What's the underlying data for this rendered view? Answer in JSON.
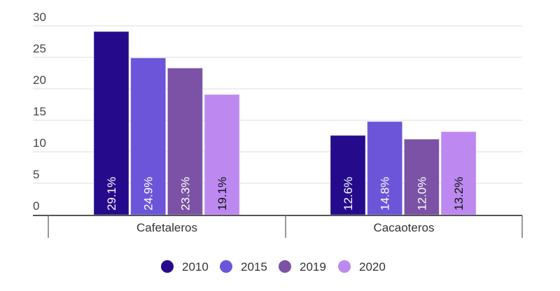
{
  "chart_data": {
    "type": "bar",
    "title": "",
    "xlabel": "",
    "ylabel": "",
    "ylim": [
      0,
      30
    ],
    "yticks": [
      "0",
      "5",
      "10",
      "15",
      "20",
      "25",
      "30"
    ],
    "grid": true,
    "legend_position": "bottom",
    "categories": [
      "Cafetaleros",
      "Cacaoteros"
    ],
    "series": [
      {
        "name": "2010",
        "color": "#250b8c",
        "label_color": "#ffffff",
        "values": [
          29.1,
          12.6
        ],
        "labels": [
          "29.1%",
          "12.6%"
        ]
      },
      {
        "name": "2015",
        "color": "#6c55d8",
        "label_color": "#ffffff",
        "values": [
          24.9,
          14.8
        ],
        "labels": [
          "24.9%",
          "14.8%"
        ]
      },
      {
        "name": "2019",
        "color": "#7b52a6",
        "label_color": "#ffffff",
        "values": [
          23.3,
          12.0
        ],
        "labels": [
          "23.3%",
          "12.0%"
        ]
      },
      {
        "name": "2020",
        "color": "#bd89f0",
        "label_color": "#111111",
        "values": [
          19.1,
          13.2
        ],
        "labels": [
          "19.1%",
          "13.2%"
        ]
      }
    ]
  }
}
